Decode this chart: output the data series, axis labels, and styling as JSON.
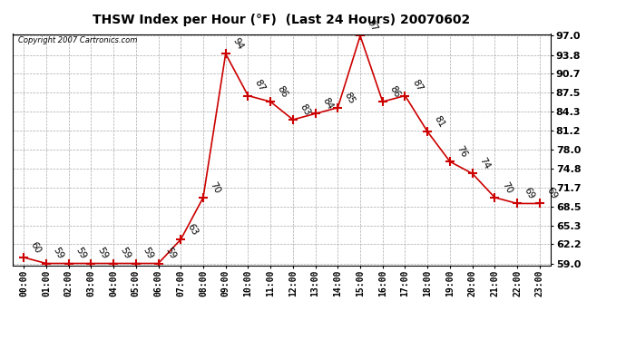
{
  "title": "THSW Index per Hour (°F)  (Last 24 Hours) 20070602",
  "copyright": "Copyright 2007 Cartronics.com",
  "hours": [
    "00:00",
    "01:00",
    "02:00",
    "03:00",
    "04:00",
    "05:00",
    "06:00",
    "07:00",
    "08:00",
    "09:00",
    "10:00",
    "11:00",
    "12:00",
    "13:00",
    "14:00",
    "15:00",
    "16:00",
    "17:00",
    "18:00",
    "19:00",
    "20:00",
    "21:00",
    "22:00",
    "23:00"
  ],
  "values": [
    60,
    59,
    59,
    59,
    59,
    59,
    59,
    63,
    70,
    94,
    87,
    86,
    83,
    84,
    85,
    97,
    86,
    87,
    81,
    76,
    74,
    70,
    69,
    69
  ],
  "line_color": "#cc0000",
  "marker": "+",
  "bg_color": "#ffffff",
  "grid_color": "#aaaaaa",
  "ylim_min": 59.0,
  "ylim_max": 97.0,
  "yticks": [
    59.0,
    62.2,
    65.3,
    68.5,
    71.7,
    74.8,
    78.0,
    81.2,
    84.3,
    87.5,
    90.7,
    93.8,
    97.0
  ],
  "label_rotation": -60,
  "label_fontsize": 7.5
}
